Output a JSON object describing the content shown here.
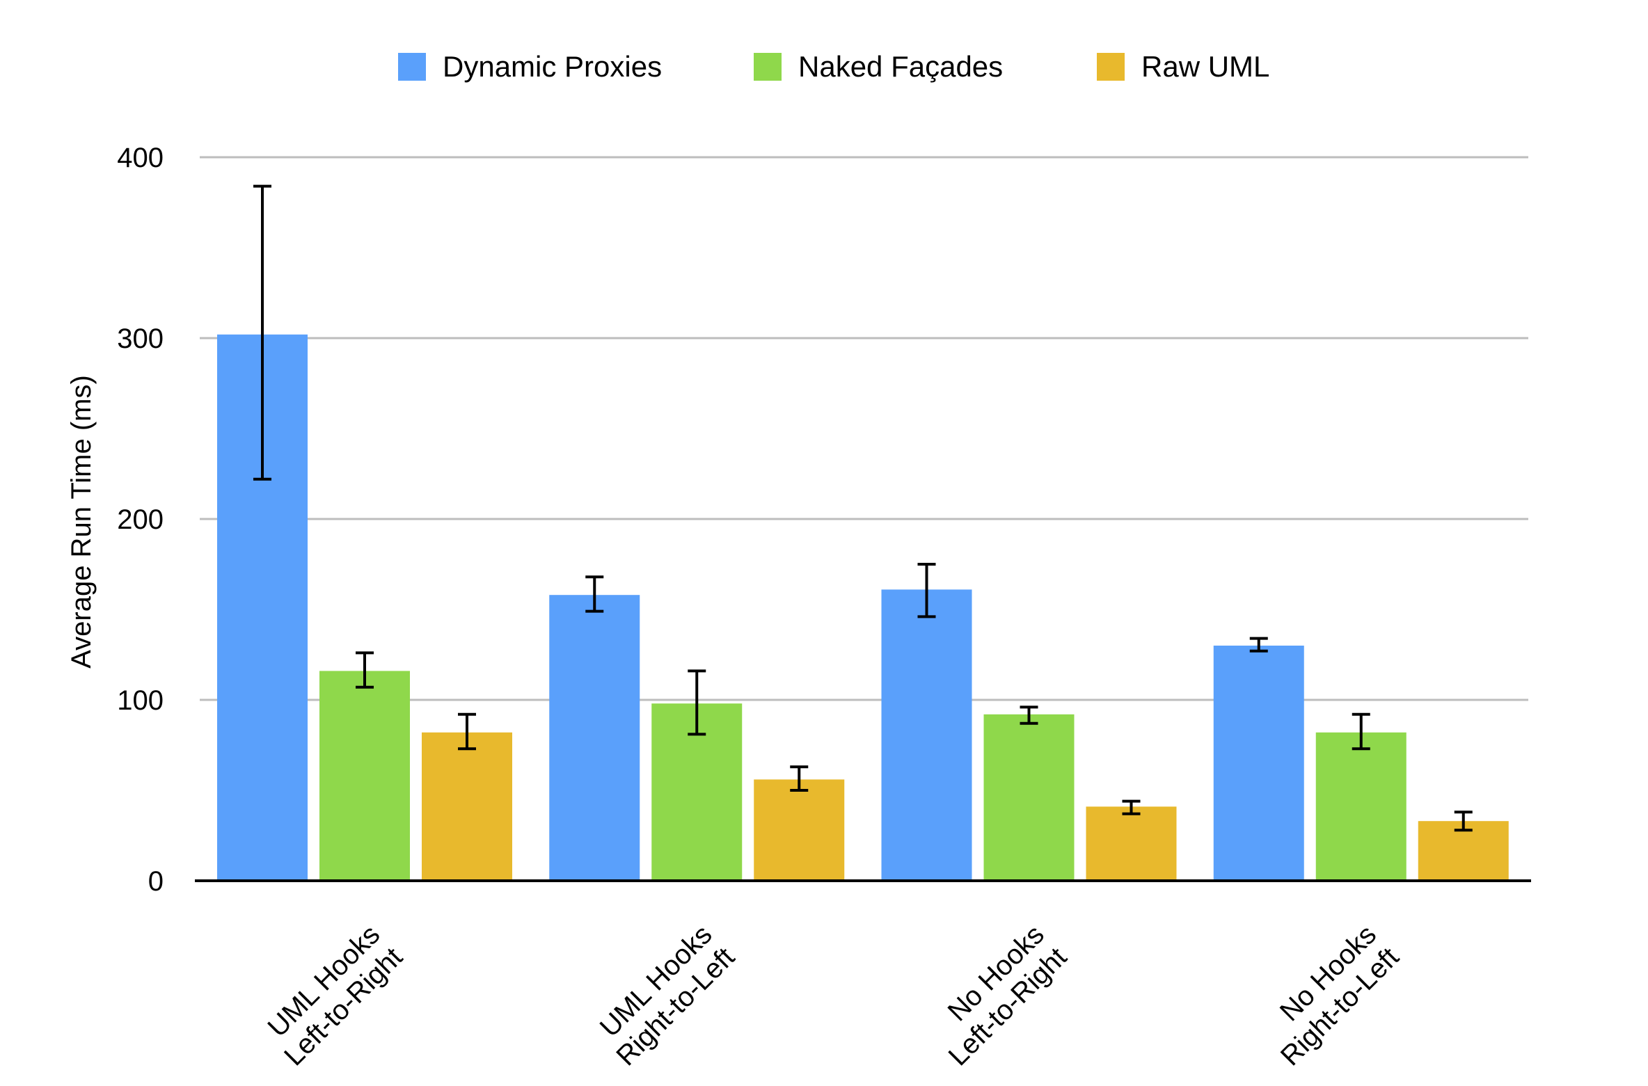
{
  "chart_data": {
    "type": "bar",
    "title": "",
    "xlabel": "",
    "ylabel": "Average Run Time (ms)",
    "ylim": [
      0,
      400
    ],
    "yticks": [
      0,
      100,
      200,
      300,
      400
    ],
    "grid": true,
    "legend_position": "top",
    "categories": [
      [
        "UML Hooks",
        "Left-to-Right"
      ],
      [
        "UML Hooks",
        "Right-to-Left"
      ],
      [
        "No Hooks",
        "Left-to-Right"
      ],
      [
        "No Hooks",
        "Right-to-Left"
      ]
    ],
    "series": [
      {
        "name": "Dynamic Proxies",
        "color": "#5aa0fb",
        "values": [
          302,
          158,
          161,
          130
        ],
        "error_low": [
          222,
          149,
          146,
          127
        ],
        "error_high": [
          384,
          168,
          175,
          134
        ]
      },
      {
        "name": "Naked Façades",
        "color": "#8fd84b",
        "values": [
          116,
          98,
          92,
          82
        ],
        "error_low": [
          107,
          81,
          87,
          73
        ],
        "error_high": [
          126,
          116,
          96,
          92
        ]
      },
      {
        "name": "Raw UML",
        "color": "#e8b92d",
        "values": [
          82,
          56,
          41,
          33
        ],
        "error_low": [
          73,
          50,
          37,
          28
        ],
        "error_high": [
          92,
          63,
          44,
          38
        ]
      }
    ]
  }
}
